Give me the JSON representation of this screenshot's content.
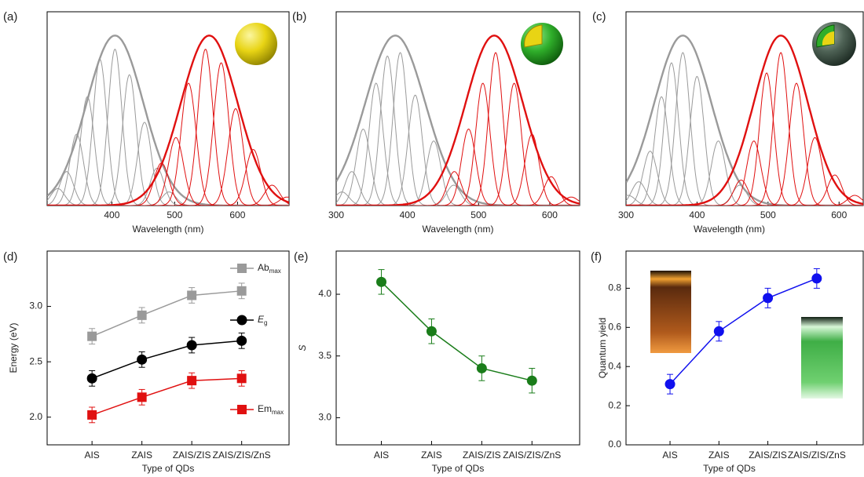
{
  "chart_data": [
    {
      "type": "spectra",
      "panel_label": "(a)",
      "x_label": "Wavelength (nm)",
      "xlim": [
        297,
        682
      ],
      "xticks": [
        400,
        500,
        600
      ],
      "ylim": [
        0,
        1.14
      ],
      "series": [
        {
          "color": "#9a9a9a",
          "envelope_center": 405,
          "envelope_height": 1,
          "envelope_width": 45,
          "width": 11,
          "centers": [
            314,
            328,
            344,
            361,
            381,
            405,
            428,
            452,
            472,
            491
          ],
          "heights": [
            0.1,
            0.2,
            0.42,
            0.64,
            0.86,
            0.92,
            0.77,
            0.49,
            0.22,
            0.08
          ]
        },
        {
          "color": "#e01010",
          "envelope_center": 555,
          "envelope_height": 1,
          "envelope_width": 45,
          "width": 12,
          "centers": [
            479,
            502,
            522,
            549,
            574,
            597,
            625,
            655,
            679
          ],
          "heights": [
            0.25,
            0.4,
            0.72,
            0.92,
            0.84,
            0.57,
            0.33,
            0.12,
            0.05
          ]
        }
      ]
    },
    {
      "type": "spectra",
      "panel_label": "(b)",
      "x_label": "Wavelength (nm)",
      "xlim": [
        300,
        642
      ],
      "xticks": [
        300,
        400,
        500,
        600
      ],
      "ylim": [
        0,
        1.14
      ],
      "series": [
        {
          "color": "#9a9a9a",
          "envelope_center": 383,
          "envelope_height": 1,
          "envelope_width": 42,
          "width": 10,
          "centers": [
            308,
            322,
            338,
            356,
            372,
            390,
            411,
            437,
            465
          ],
          "heights": [
            0.08,
            0.2,
            0.45,
            0.72,
            0.88,
            0.9,
            0.65,
            0.38,
            0.12
          ]
        },
        {
          "color": "#e01010",
          "envelope_center": 522,
          "envelope_height": 1,
          "envelope_width": 40,
          "width": 10,
          "centers": [
            466,
            486,
            506,
            524,
            550,
            575,
            602,
            630
          ],
          "heights": [
            0.2,
            0.45,
            0.72,
            0.9,
            0.72,
            0.42,
            0.17,
            0.05
          ]
        }
      ]
    },
    {
      "type": "spectra",
      "panel_label": "(c)",
      "x_label": "Wavelength (nm)",
      "xlim": [
        300,
        634
      ],
      "xticks": [
        300,
        400,
        500,
        600
      ],
      "ylim": [
        0,
        1.14
      ],
      "series": [
        {
          "color": "#9a9a9a",
          "envelope_center": 380,
          "envelope_height": 1,
          "envelope_width": 40,
          "width": 10,
          "centers": [
            303,
            318,
            334,
            350,
            364,
            380,
            400,
            430,
            460
          ],
          "heights": [
            0.06,
            0.14,
            0.32,
            0.64,
            0.84,
            0.9,
            0.76,
            0.38,
            0.12
          ]
        },
        {
          "color": "#e01010",
          "envelope_center": 518,
          "envelope_height": 1,
          "envelope_width": 38,
          "width": 10,
          "centers": [
            462,
            480,
            498,
            518,
            540,
            566,
            594,
            622
          ],
          "heights": [
            0.15,
            0.38,
            0.78,
            0.9,
            0.72,
            0.4,
            0.18,
            0.06
          ]
        }
      ]
    },
    {
      "type": "line",
      "panel_label": "(d)",
      "x_label": "Type of QDs",
      "y_label": "Energy (eV)",
      "categories": [
        "AIS",
        "ZAIS",
        "ZAIS/ZIS",
        "ZAIS/ZIS/ZnS"
      ],
      "ylim": [
        1.75,
        3.5
      ],
      "yticks": [
        {
          "value": 2,
          "label": "2.0"
        },
        2.5,
        {
          "value": 3,
          "label": "3.0"
        }
      ],
      "series": [
        {
          "name": "Ab",
          "subscript": "max",
          "italic": false,
          "marker": "square",
          "color": "#9a9a9a",
          "values": [
            2.73,
            2.92,
            3.1,
            3.14
          ],
          "errors": [
            0.07,
            0.07,
            0.07,
            0.07
          ]
        },
        {
          "name": "E",
          "subscript": "g",
          "italic": true,
          "marker": "circle",
          "color": "#000000",
          "values": [
            2.35,
            2.52,
            2.65,
            2.69
          ],
          "errors": [
            0.07,
            0.07,
            0.07,
            0.07
          ]
        },
        {
          "name": "Em",
          "subscript": "max",
          "italic": false,
          "marker": "square",
          "color": "#e01010",
          "values": [
            2.02,
            2.18,
            2.33,
            2.35
          ],
          "errors": [
            0.07,
            0.07,
            0.07,
            0.07
          ]
        }
      ]
    },
    {
      "type": "line",
      "panel_label": "(e)",
      "x_label": "Type of QDs",
      "y_label": "S",
      "categories": [
        "AIS",
        "ZAIS",
        "ZAIS/ZIS",
        "ZAIS/ZIS/ZnS"
      ],
      "ylim": [
        2.78,
        4.35
      ],
      "yticks": [
        {
          "value": 3,
          "label": "3.0"
        },
        3.5,
        {
          "value": 4,
          "label": "4.0"
        }
      ],
      "series": [
        {
          "marker": "circle",
          "color": "#1a7d1a",
          "values": [
            4.1,
            3.7,
            3.4,
            3.3
          ],
          "errors": [
            0.1,
            0.1,
            0.1,
            0.1
          ]
        }
      ]
    },
    {
      "type": "line",
      "panel_label": "(f)",
      "x_label": "Type of QDs",
      "y_label": "Quantum yield",
      "categories": [
        "AIS",
        "ZAIS",
        "ZAIS/ZIS",
        "ZAIS/ZIS/ZnS"
      ],
      "ylim": [
        0,
        0.99
      ],
      "yticks": [
        {
          "value": 0,
          "label": "0.0"
        },
        0.2,
        0.4,
        0.6,
        0.8
      ],
      "series": [
        {
          "marker": "circle",
          "color": "#1010ee",
          "values": [
            0.31,
            0.58,
            0.75,
            0.85
          ],
          "errors": [
            0.05,
            0.05,
            0.05,
            0.05
          ]
        }
      ]
    }
  ]
}
